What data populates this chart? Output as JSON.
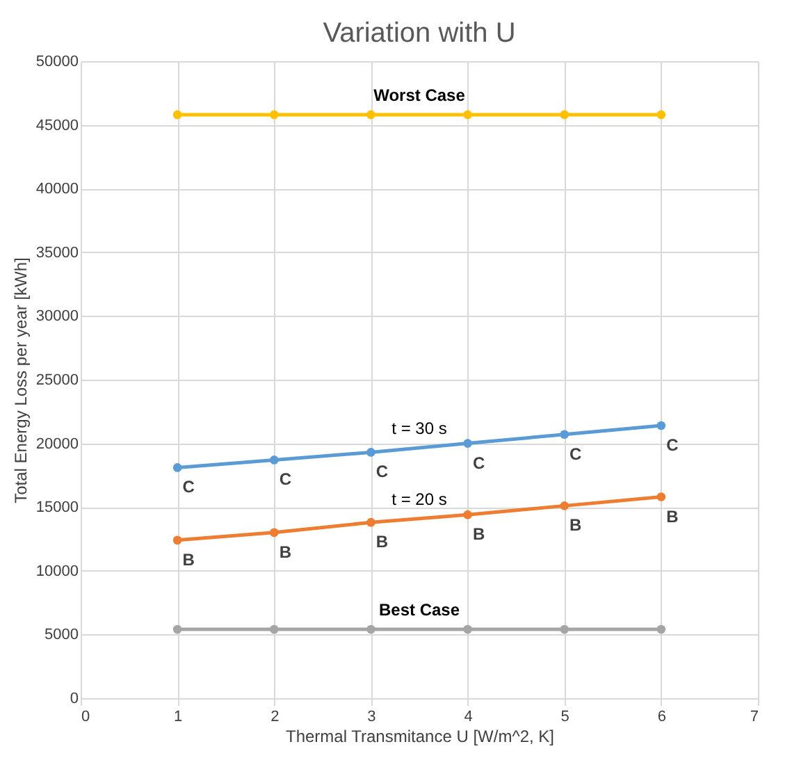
{
  "chart_data": {
    "type": "line",
    "title": "Variation with U",
    "xlabel": "Thermal Transmitance U [W/m^2, K]",
    "ylabel": "Total Energy Loss per year [kWh]",
    "x": [
      1,
      2,
      3,
      4,
      5,
      6
    ],
    "series": [
      {
        "name": "Worst Case",
        "color": "#ffc000",
        "values": [
          45800,
          45800,
          45800,
          45800,
          45800,
          45800
        ]
      },
      {
        "name": "t = 30 s",
        "color": "#5b9bd5",
        "values": [
          18100,
          18700,
          19300,
          20000,
          20700,
          21400
        ],
        "value_labels": [
          "C",
          "C",
          "C",
          "C",
          "C",
          "C"
        ]
      },
      {
        "name": "t = 20 s",
        "color": "#ed7d31",
        "values": [
          12400,
          13000,
          13800,
          14400,
          15100,
          15800
        ],
        "value_labels": [
          "B",
          "B",
          "B",
          "B",
          "B",
          "B"
        ]
      },
      {
        "name": "Best Case",
        "color": "#a5a5a5",
        "values": [
          5400,
          5400,
          5400,
          5400,
          5400,
          5400
        ]
      }
    ],
    "xlim": [
      0,
      7
    ],
    "xticks": [
      0,
      1,
      2,
      3,
      4,
      5,
      6,
      7
    ],
    "ylim": [
      0,
      50000
    ],
    "yticks": [
      0,
      5000,
      10000,
      15000,
      20000,
      25000,
      30000,
      35000,
      40000,
      45000,
      50000
    ],
    "grid": true,
    "marker": "circle",
    "line_style": "solid"
  }
}
